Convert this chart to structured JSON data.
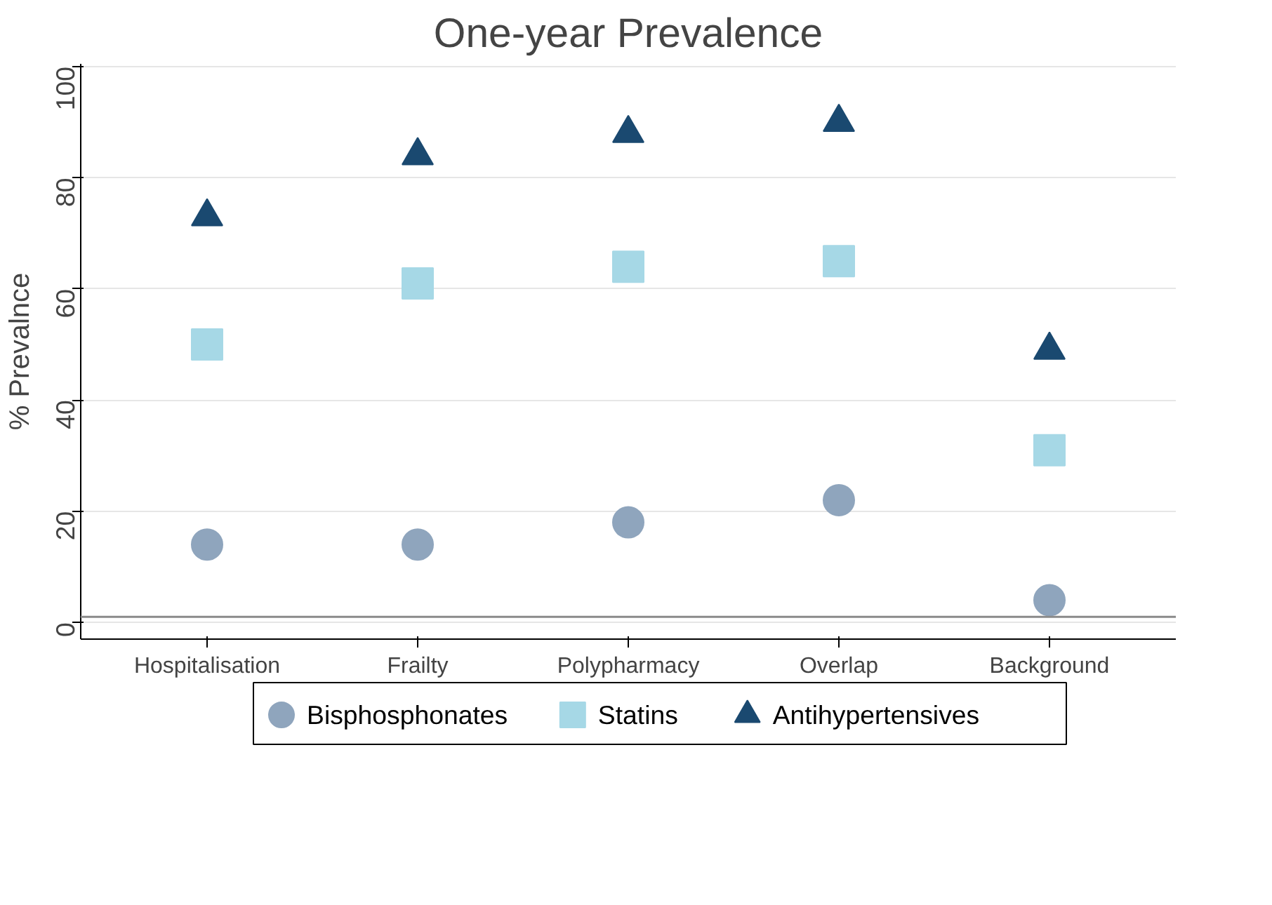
{
  "chart_data": {
    "type": "scatter",
    "title": "One-year Prevalence",
    "ylabel": "% Prevalnce",
    "categories": [
      "Hospitalisation",
      "Frailty",
      "Polypharmacy",
      "Overlap",
      "Background"
    ],
    "series": [
      {
        "name": "Bisphosphonates",
        "color": "#8fa5bd",
        "marker": "circle",
        "values": [
          14,
          14,
          18,
          22,
          4
        ]
      },
      {
        "name": "Statins",
        "color": "#a6d8e6",
        "marker": "square",
        "values": [
          50,
          61,
          64,
          65,
          31
        ]
      },
      {
        "name": "Antihypertensives",
        "color": "#1a4970",
        "marker": "triangle",
        "values": [
          73,
          84,
          88,
          90,
          49
        ]
      }
    ],
    "ylim": [
      -3,
      100.5
    ],
    "yticks": [
      0,
      20,
      40,
      60,
      80,
      100
    ],
    "grid": "y",
    "legend": "bottom",
    "ref_lines": [
      {
        "axis": "y",
        "value": 1,
        "color": "#8a8a8a"
      }
    ]
  }
}
